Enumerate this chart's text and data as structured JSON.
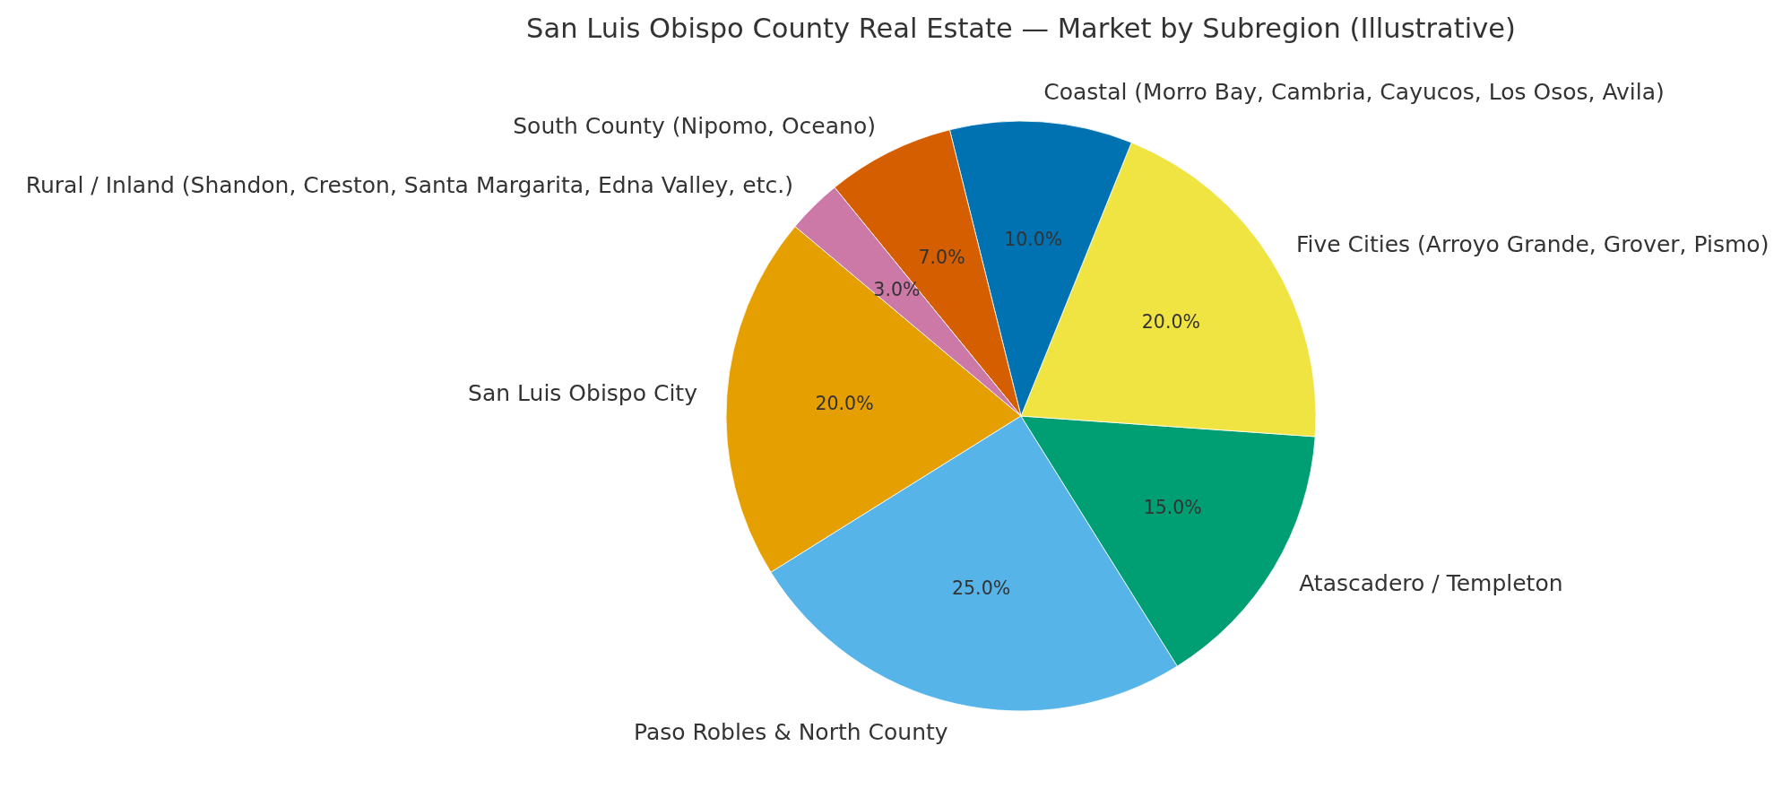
{
  "chart_data": {
    "type": "pie",
    "title": "San Luis Obispo County Real Estate — Market by Subregion (Illustrative)",
    "categories": [
      "San Luis Obispo City",
      "Paso Robles & North County",
      "Atascadero / Templeton",
      "Five Cities (Arroyo Grande, Grover, Pismo)",
      "Coastal (Morro Bay, Cambria, Cayucos, Los Osos, Avila)",
      "South County (Nipomo, Oceano)",
      "Rural / Inland (Shandon, Creston, Santa Margarita, Edna Valley, etc.)"
    ],
    "values": [
      20,
      25,
      15,
      20,
      10,
      7,
      3
    ],
    "colors": [
      "#e69f00",
      "#56b4e9",
      "#009e73",
      "#f0e442",
      "#0072b2",
      "#d55e00",
      "#cc79a7"
    ],
    "value_labels": [
      "20.0%",
      "25.0%",
      "15.0%",
      "20.0%",
      "10.0%",
      "7.0%",
      "3.0%"
    ]
  }
}
